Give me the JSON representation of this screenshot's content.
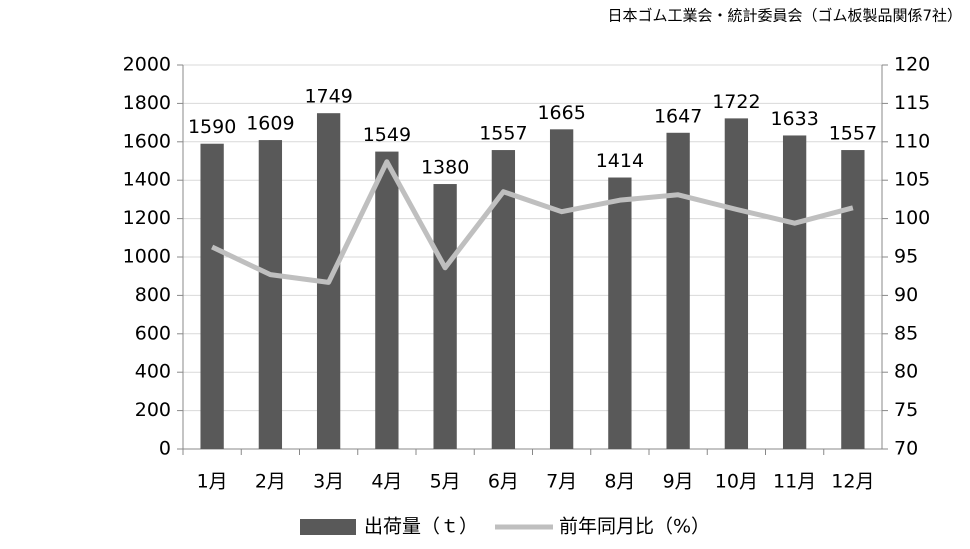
{
  "chart_data": {
    "type": "bar",
    "source": "日本ゴム工業会・統計委員会（ゴム板製品関係7社）",
    "categories": [
      "1月",
      "2月",
      "3月",
      "4月",
      "5月",
      "6月",
      "7月",
      "8月",
      "9月",
      "10月",
      "11月",
      "12月"
    ],
    "series": [
      {
        "name": "出荷量（ｔ）",
        "type": "bar",
        "color": "#595959",
        "data_labels": true,
        "values": [
          1590,
          1609,
          1749,
          1549,
          1380,
          1557,
          1665,
          1414,
          1647,
          1722,
          1633,
          1557
        ]
      },
      {
        "name": "前年同月比（%）",
        "type": "line",
        "axis": "y2",
        "color": "#bfbfbf",
        "values": [
          96.3,
          92.7,
          91.7,
          107.4,
          93.6,
          103.5,
          100.9,
          102.4,
          103.1,
          101.2,
          99.4,
          101.4
        ]
      }
    ],
    "ylim": [
      0,
      2000
    ],
    "yticks": [
      0,
      200,
      400,
      600,
      800,
      1000,
      1200,
      1400,
      1600,
      1800,
      2000
    ],
    "y2lim": [
      70,
      120
    ],
    "y2ticks": [
      70,
      75,
      80,
      85,
      90,
      95,
      100,
      105,
      110,
      115,
      120
    ],
    "grid": true,
    "legend": "bottom"
  }
}
